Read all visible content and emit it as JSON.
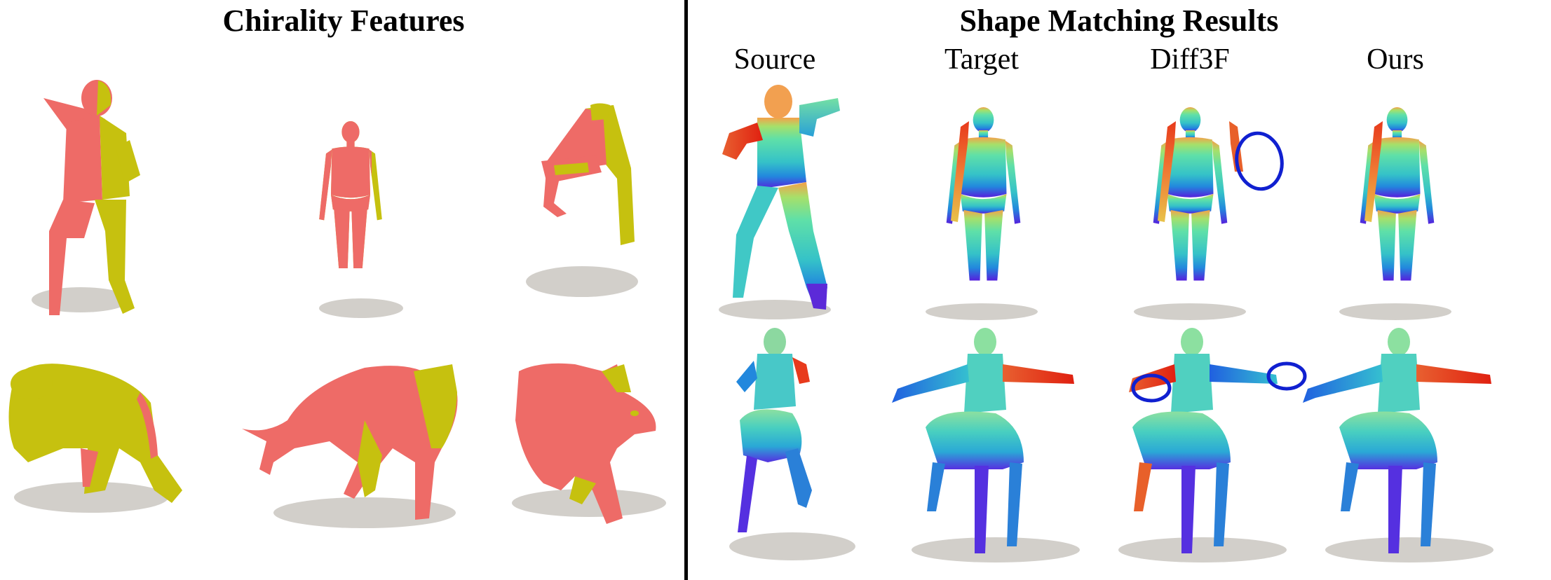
{
  "figure": {
    "left_panel": {
      "title": "Chirality Features",
      "colors": {
        "left_side": "#ee6b67",
        "right_side": "#c6c10f"
      },
      "shapes": [
        "dancing-human",
        "standing-human",
        "kneeling-legs",
        "lion",
        "wolf",
        "cat"
      ]
    },
    "right_panel": {
      "title": "Shape Matching Results",
      "columns": [
        "Source",
        "Target",
        "Diff3F",
        "Ours"
      ],
      "rows": [
        "human",
        "centaur"
      ],
      "highlight_color": "#1020d0"
    }
  }
}
